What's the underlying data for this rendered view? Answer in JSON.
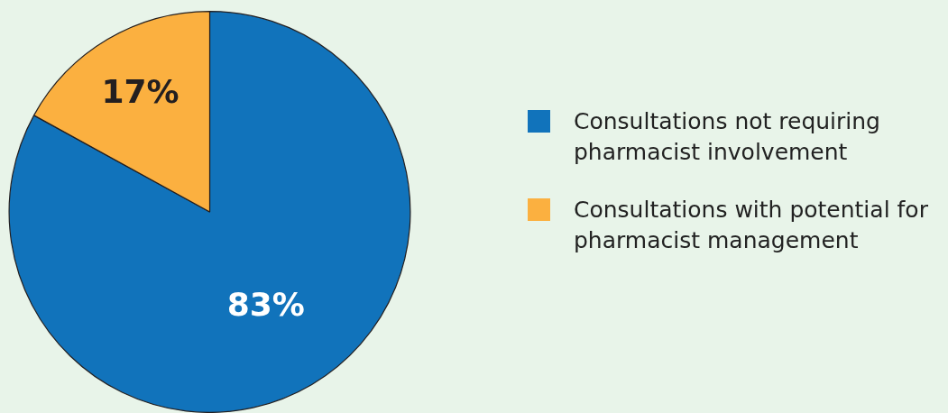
{
  "chart_data": {
    "type": "pie",
    "categories": [
      "Consultations not requiring pharmacist involvement",
      "Consultations with potential for pharmacist management"
    ],
    "values": [
      83,
      17
    ],
    "colors": [
      "#1173bb",
      "#fbb040"
    ],
    "value_labels": [
      "83%",
      "17%"
    ],
    "legend": "right"
  }
}
